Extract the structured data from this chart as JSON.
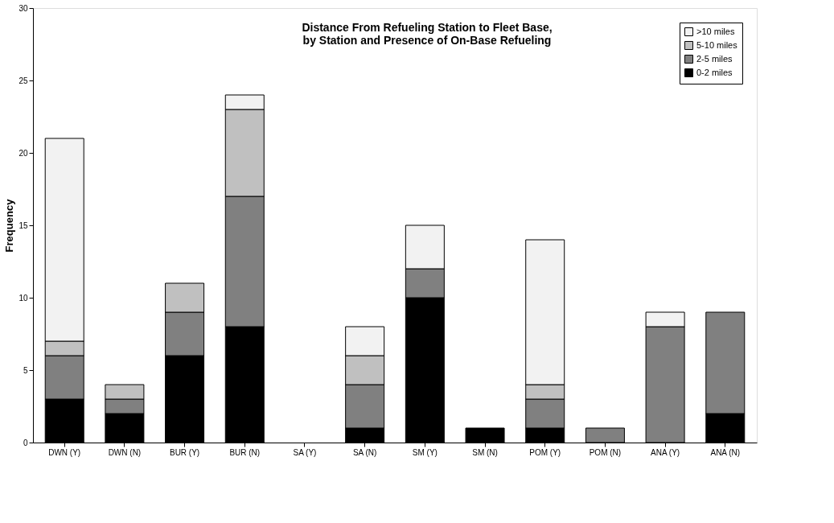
{
  "chart_data": {
    "type": "bar",
    "stacked": true,
    "title": "Distance From Refueling Station to Fleet Base,\nby Station and Presence of On-Base Refueling",
    "ylabel": "Frequency",
    "categories": [
      "DWN (Y)",
      "DWN (N)",
      "BUR (Y)",
      "BUR (N)",
      "SA (Y)",
      "SA (N)",
      "SM (Y)",
      "SM (N)",
      "POM (Y)",
      "POM (N)",
      "ANA (Y)",
      "ANA (N)"
    ],
    "series": [
      {
        "name": "0-2 miles",
        "color": "#000000",
        "values": [
          3,
          2,
          6,
          8,
          0,
          1,
          10,
          1,
          1,
          0,
          0,
          2
        ]
      },
      {
        "name": "2-5 miles",
        "color": "#808080",
        "values": [
          3,
          1,
          3,
          9,
          0,
          3,
          2,
          0,
          2,
          1,
          8,
          7
        ]
      },
      {
        "name": "5-10 miles",
        "color": "#c0c0c0",
        "values": [
          1,
          1,
          2,
          6,
          0,
          2,
          0,
          0,
          1,
          0,
          0,
          0
        ]
      },
      {
        "name": ">10 miles",
        "color": "#f2f2f2",
        "values": [
          14,
          0,
          0,
          1,
          0,
          2,
          3,
          0,
          10,
          0,
          1,
          0
        ]
      }
    ],
    "ylim": [
      0,
      30
    ],
    "yticks": [
      0,
      5,
      10,
      15,
      20,
      25,
      30
    ],
    "grid": false,
    "legend": "top right"
  }
}
